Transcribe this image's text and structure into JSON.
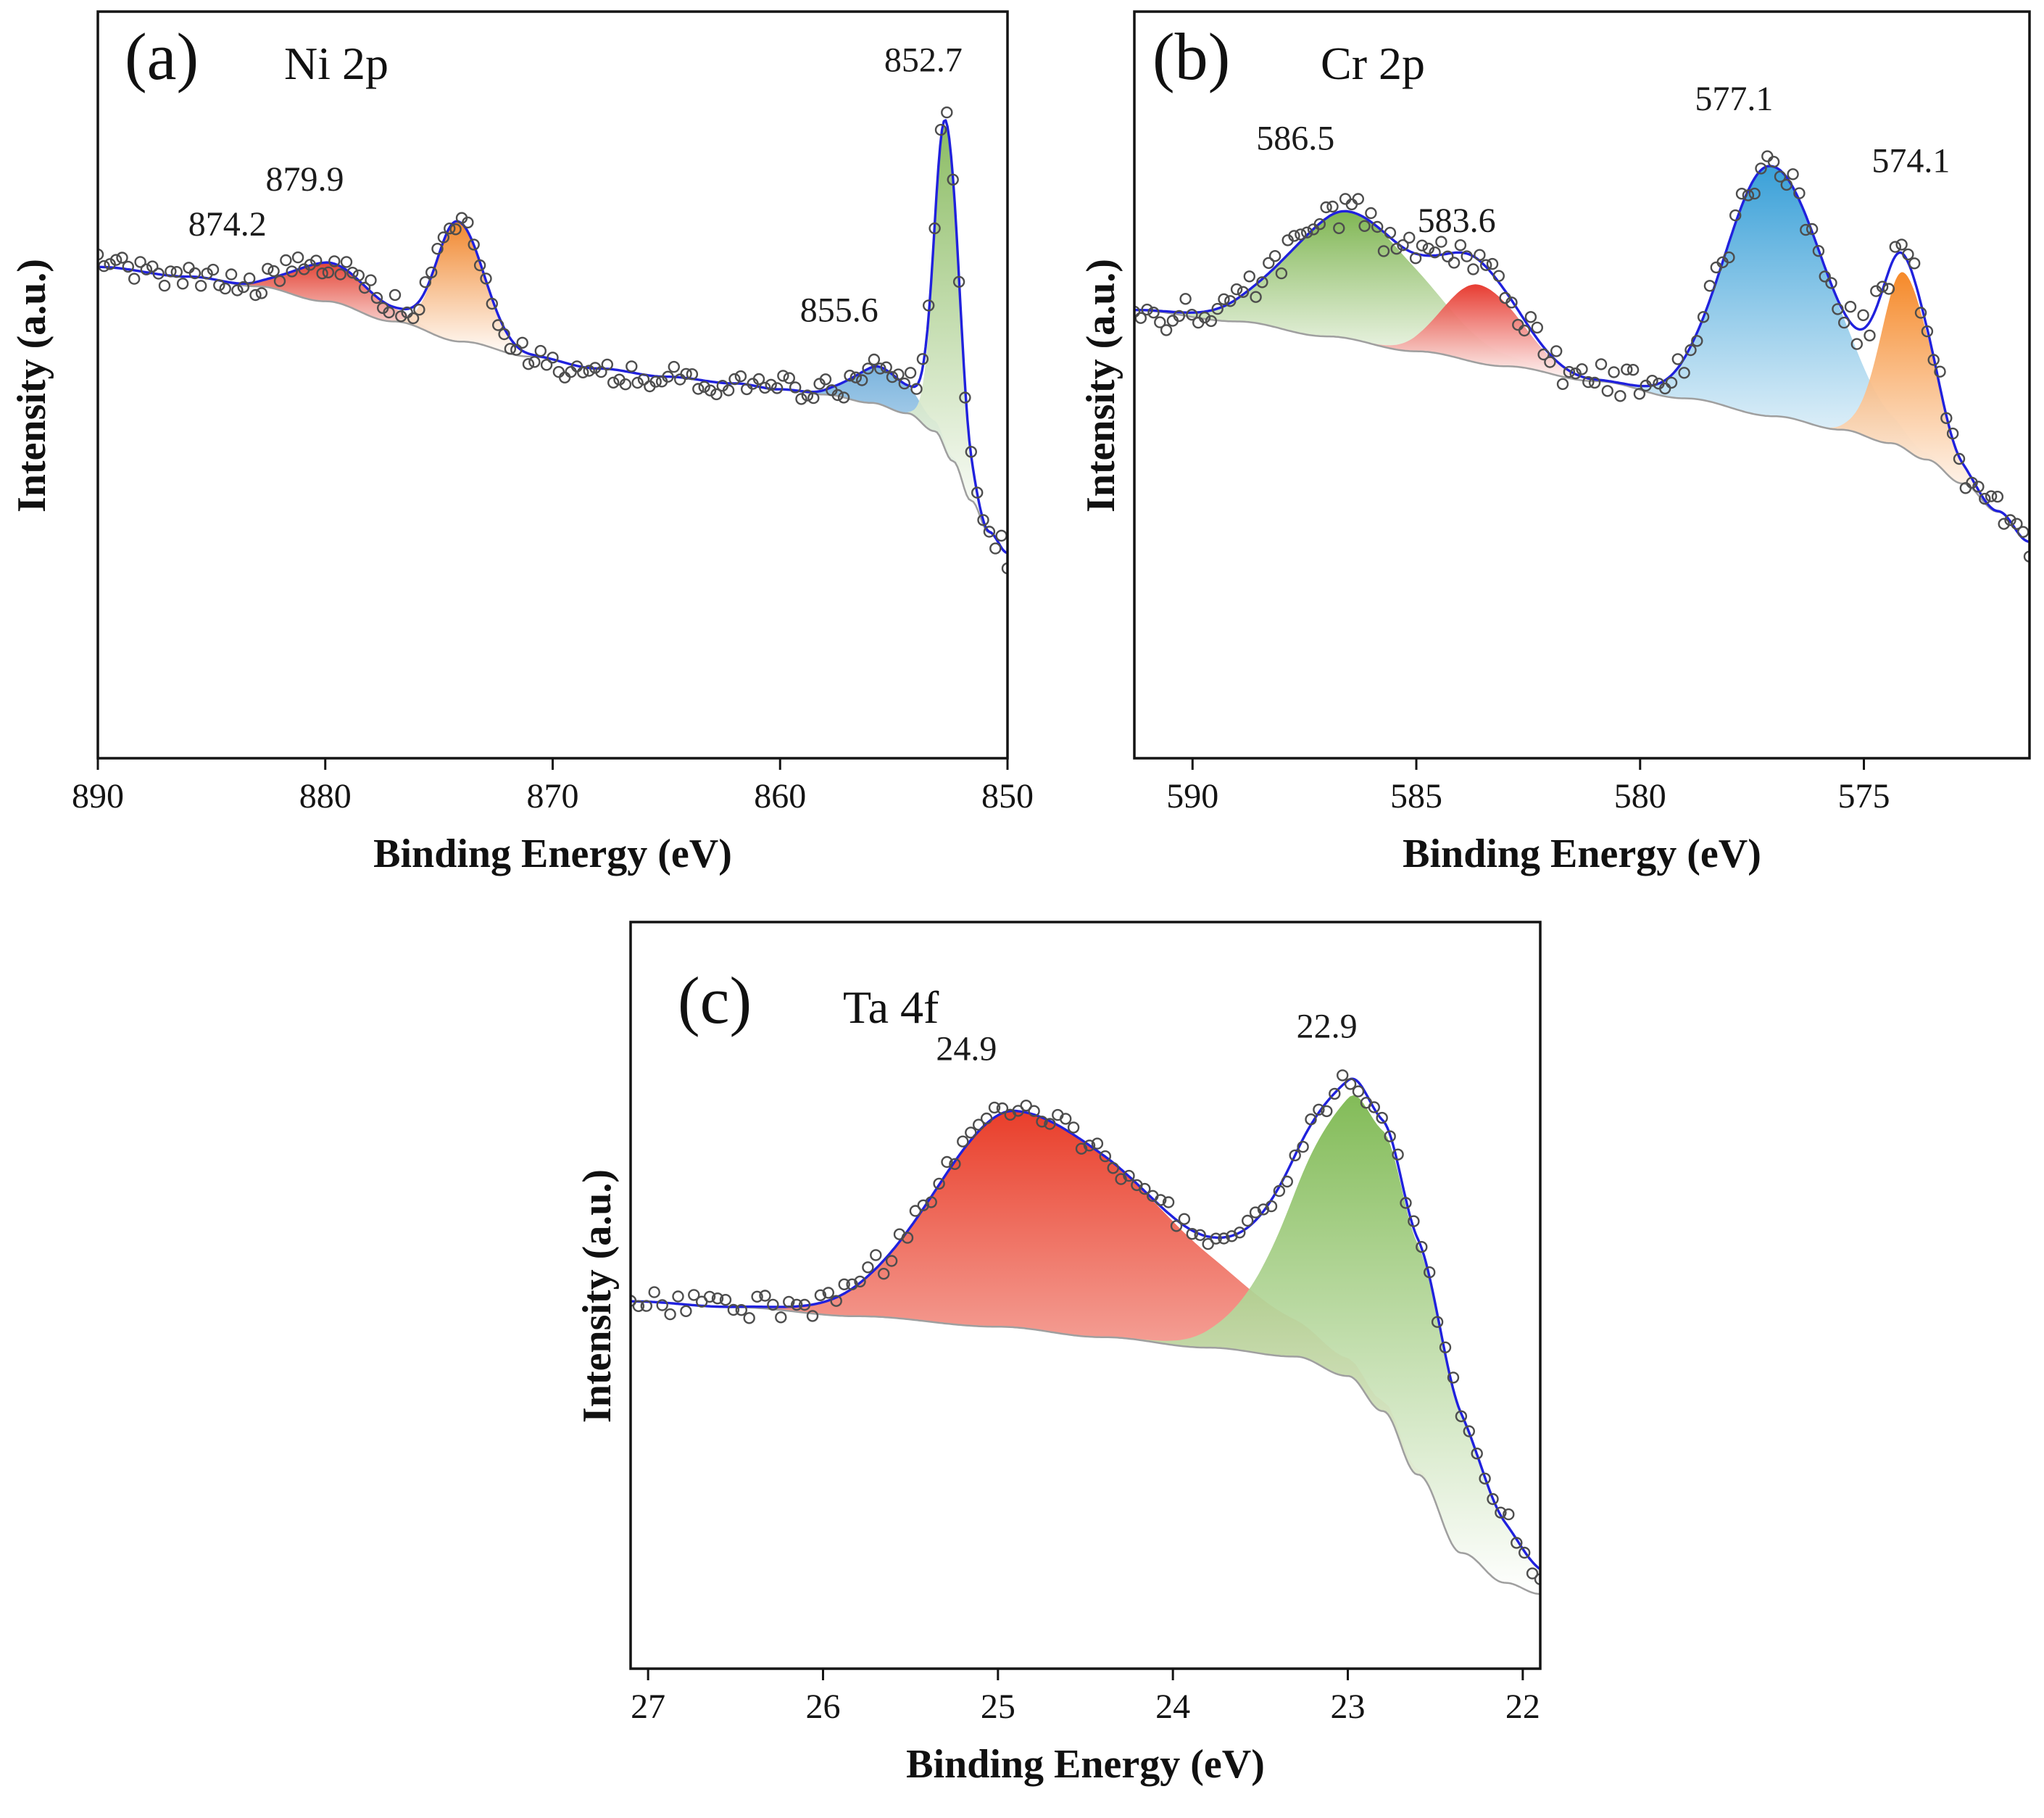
{
  "chart_data": {
    "type": "line",
    "panels": [
      {
        "panel_label": "(a)",
        "title": "Ni 2p",
        "xlabel": "Binding Energy (eV)",
        "ylabel": "Intensity (a.u.)",
        "x_range": [
          890,
          850
        ],
        "x_ticks": [
          890,
          880,
          870,
          860,
          850
        ],
        "x_reversed": true,
        "envelope_color": "#2021dd",
        "background_line_color": "#9f9f9f",
        "point_color": "#4d4d4d",
        "noise": 0.016,
        "n_points": 150,
        "background_points": [
          [
            850,
            0.275
          ],
          [
            850.8,
            0.302
          ],
          [
            851.6,
            0.345
          ],
          [
            852.4,
            0.398
          ],
          [
            853.2,
            0.438
          ],
          [
            854.4,
            0.462
          ],
          [
            856,
            0.476
          ],
          [
            858,
            0.487
          ],
          [
            860,
            0.494
          ],
          [
            862,
            0.502
          ],
          [
            865,
            0.511
          ],
          [
            868,
            0.522
          ],
          [
            871,
            0.538
          ],
          [
            874,
            0.558
          ],
          [
            877,
            0.585
          ],
          [
            880,
            0.612
          ],
          [
            883,
            0.632
          ],
          [
            886,
            0.645
          ],
          [
            890,
            0.658
          ]
        ],
        "peaks": [
          {
            "label": "879.9",
            "center": 879.9,
            "amp": 0.052,
            "sigma_l": 2.0,
            "sigma_r": 1.5,
            "color": "#e23a2b",
            "label_pos": [
              880.9,
              0.76
            ]
          },
          {
            "label": "874.2",
            "center": 874.2,
            "amp": 0.16,
            "sigma_l": 1.15,
            "sigma_r": 0.9,
            "color": "#f08123",
            "label_pos": [
              884.3,
              0.7
            ]
          },
          {
            "label": "855.6",
            "center": 855.6,
            "amp": 0.05,
            "sigma_l": 1.5,
            "sigma_r": 1.2,
            "color": "#74b0dc",
            "label_pos": [
              857.4,
              0.585
            ]
          },
          {
            "label": "852.7",
            "center": 852.7,
            "amp": 0.435,
            "sigma_l": 0.55,
            "sigma_r": 0.5,
            "color": "#86b95c",
            "label_pos": [
              853.7,
              0.92
            ]
          }
        ]
      },
      {
        "panel_label": "(b)",
        "title": "Cr 2p",
        "xlabel": "Binding Energy (eV)",
        "ylabel": "Intensity (a.u.)",
        "x_range": [
          591.3,
          571.3
        ],
        "x_ticks": [
          590,
          585,
          580,
          575
        ],
        "x_reversed": true,
        "envelope_color": "#2021dd",
        "background_line_color": "#9f9f9f",
        "point_color": "#4d4d4d",
        "noise": 0.022,
        "n_points": 140,
        "background_points": [
          [
            571.3,
            0.29
          ],
          [
            572,
            0.33
          ],
          [
            572.8,
            0.368
          ],
          [
            573.6,
            0.4
          ],
          [
            574.4,
            0.422
          ],
          [
            575.5,
            0.44
          ],
          [
            577,
            0.458
          ],
          [
            579,
            0.482
          ],
          [
            581,
            0.505
          ],
          [
            583,
            0.525
          ],
          [
            585,
            0.545
          ],
          [
            587,
            0.565
          ],
          [
            589,
            0.585
          ],
          [
            591.3,
            0.6
          ]
        ],
        "peaks": [
          {
            "label": "586.5",
            "center": 586.5,
            "amp": 0.17,
            "sigma_l": 1.6,
            "sigma_r": 1.35,
            "color": "#79b24a",
            "label_pos": [
              587.7,
              0.815
            ]
          },
          {
            "label": "583.6",
            "center": 583.6,
            "amp": 0.105,
            "sigma_l": 0.9,
            "sigma_r": 0.78,
            "color": "#e63227",
            "label_pos": [
              584.1,
              0.705
            ]
          },
          {
            "label": "577.1",
            "center": 577.1,
            "amp": 0.335,
            "sigma_l": 1.3,
            "sigma_r": 1.0,
            "color": "#2f9bd6",
            "label_pos": [
              577.9,
              0.868
            ]
          },
          {
            "label": "574.1",
            "center": 574.1,
            "amp": 0.235,
            "sigma_l": 0.62,
            "sigma_r": 0.52,
            "color": "#f5831e",
            "label_pos": [
              573.95,
              0.785
            ]
          }
        ]
      },
      {
        "panel_label": "(c)",
        "title": "Ta 4f",
        "xlabel": "Binding Energy (eV)",
        "ylabel": "Intensity (a.u.)",
        "x_range": [
          27.1,
          21.9
        ],
        "x_ticks": [
          27,
          26,
          25,
          24,
          23,
          22
        ],
        "x_reversed": true,
        "envelope_color": "#2021dd",
        "background_line_color": "#9f9f9f",
        "point_color": "#4d4d4d",
        "noise": 0.015,
        "n_points": 115,
        "background_points": [
          [
            21.9,
            0.1
          ],
          [
            22.1,
            0.115
          ],
          [
            22.35,
            0.155
          ],
          [
            22.6,
            0.26
          ],
          [
            22.8,
            0.345
          ],
          [
            23.0,
            0.392
          ],
          [
            23.3,
            0.418
          ],
          [
            23.8,
            0.43
          ],
          [
            24.4,
            0.444
          ],
          [
            25.0,
            0.458
          ],
          [
            25.8,
            0.472
          ],
          [
            26.5,
            0.484
          ],
          [
            27.1,
            0.492
          ]
        ],
        "peaks": [
          {
            "label": "24.9",
            "center": 24.9,
            "amp": 0.29,
            "sigma_l": 0.85,
            "sigma_r": 0.46,
            "color": "#e8341f",
            "label_pos": [
              25.18,
              0.815
            ]
          },
          {
            "label": "22.9",
            "center": 22.9,
            "amp": 0.385,
            "sigma_l": 0.45,
            "sigma_r": 0.38,
            "color": "#7cb84f",
            "label_pos": [
              23.12,
              0.845
            ]
          }
        ]
      }
    ]
  }
}
